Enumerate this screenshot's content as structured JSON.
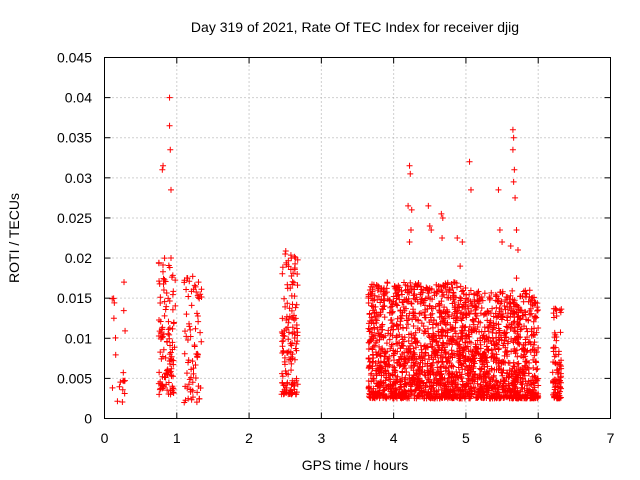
{
  "chart_data": {
    "type": "scatter",
    "title": "Day 319 of 2021, Rate Of TEC Index for receiver djig",
    "xlabel": "GPS time / hours",
    "ylabel": "ROTI / TECUs",
    "xlim": [
      0,
      7
    ],
    "ylim": [
      0,
      0.045
    ],
    "xticks": [
      "0",
      "1",
      "2",
      "3",
      "4",
      "5",
      "6",
      "7"
    ],
    "yticks": [
      "0",
      "0.005",
      "0.01",
      "0.015",
      "0.02",
      "0.025",
      "0.03",
      "0.035",
      "0.04",
      "0.045"
    ],
    "grid": true,
    "marker": "+",
    "color": "#ff0000",
    "clusters": [
      {
        "x_range": [
          0.1,
          0.3
        ],
        "y_range": [
          0.002,
          0.017
        ],
        "n": 18
      },
      {
        "x_range": [
          0.75,
          0.98
        ],
        "y_range": [
          0.003,
          0.02
        ],
        "n": 110
      },
      {
        "x_range": [
          1.1,
          1.35
        ],
        "y_range": [
          0.002,
          0.018
        ],
        "n": 70
      },
      {
        "x_range": [
          2.45,
          2.68
        ],
        "y_range": [
          0.003,
          0.021
        ],
        "n": 140
      },
      {
        "x_range": [
          3.65,
          5.0
        ],
        "y_range": [
          0.0025,
          0.017
        ],
        "n": 1300
      },
      {
        "x_range": [
          5.0,
          6.0
        ],
        "y_range": [
          0.0025,
          0.016
        ],
        "n": 900
      },
      {
        "x_range": [
          6.2,
          6.32
        ],
        "y_range": [
          0.0025,
          0.014
        ],
        "n": 90
      }
    ],
    "outliers": [
      {
        "x": 0.13,
        "y": 0.0125
      },
      {
        "x": 0.27,
        "y": 0.017
      },
      {
        "x": 0.8,
        "y": 0.031
      },
      {
        "x": 0.81,
        "y": 0.0315
      },
      {
        "x": 0.9,
        "y": 0.04
      },
      {
        "x": 0.9,
        "y": 0.0365
      },
      {
        "x": 0.91,
        "y": 0.0335
      },
      {
        "x": 0.92,
        "y": 0.0285
      },
      {
        "x": 0.92,
        "y": 0.02
      },
      {
        "x": 1.15,
        "y": 0.0175
      },
      {
        "x": 1.3,
        "y": 0.017
      },
      {
        "x": 2.5,
        "y": 0.0205
      },
      {
        "x": 2.64,
        "y": 0.02
      },
      {
        "x": 4.22,
        "y": 0.0315
      },
      {
        "x": 4.23,
        "y": 0.0305
      },
      {
        "x": 4.2,
        "y": 0.0265
      },
      {
        "x": 4.25,
        "y": 0.026
      },
      {
        "x": 4.24,
        "y": 0.0235
      },
      {
        "x": 4.22,
        "y": 0.022
      },
      {
        "x": 4.48,
        "y": 0.0265
      },
      {
        "x": 4.5,
        "y": 0.024
      },
      {
        "x": 4.52,
        "y": 0.0235
      },
      {
        "x": 4.66,
        "y": 0.0255
      },
      {
        "x": 4.68,
        "y": 0.025
      },
      {
        "x": 4.67,
        "y": 0.0225
      },
      {
        "x": 4.88,
        "y": 0.0225
      },
      {
        "x": 4.95,
        "y": 0.022
      },
      {
        "x": 4.92,
        "y": 0.019
      },
      {
        "x": 5.05,
        "y": 0.032
      },
      {
        "x": 5.07,
        "y": 0.0285
      },
      {
        "x": 5.45,
        "y": 0.0285
      },
      {
        "x": 5.47,
        "y": 0.0235
      },
      {
        "x": 5.5,
        "y": 0.022
      },
      {
        "x": 5.65,
        "y": 0.036
      },
      {
        "x": 5.66,
        "y": 0.035
      },
      {
        "x": 5.65,
        "y": 0.0335
      },
      {
        "x": 5.67,
        "y": 0.031
      },
      {
        "x": 5.66,
        "y": 0.0295
      },
      {
        "x": 5.68,
        "y": 0.0275
      },
      {
        "x": 5.7,
        "y": 0.0235
      },
      {
        "x": 5.72,
        "y": 0.021
      },
      {
        "x": 5.62,
        "y": 0.0215
      },
      {
        "x": 5.7,
        "y": 0.0175
      },
      {
        "x": 5.95,
        "y": 0.0145
      },
      {
        "x": 6.3,
        "y": 0.0135
      }
    ]
  }
}
